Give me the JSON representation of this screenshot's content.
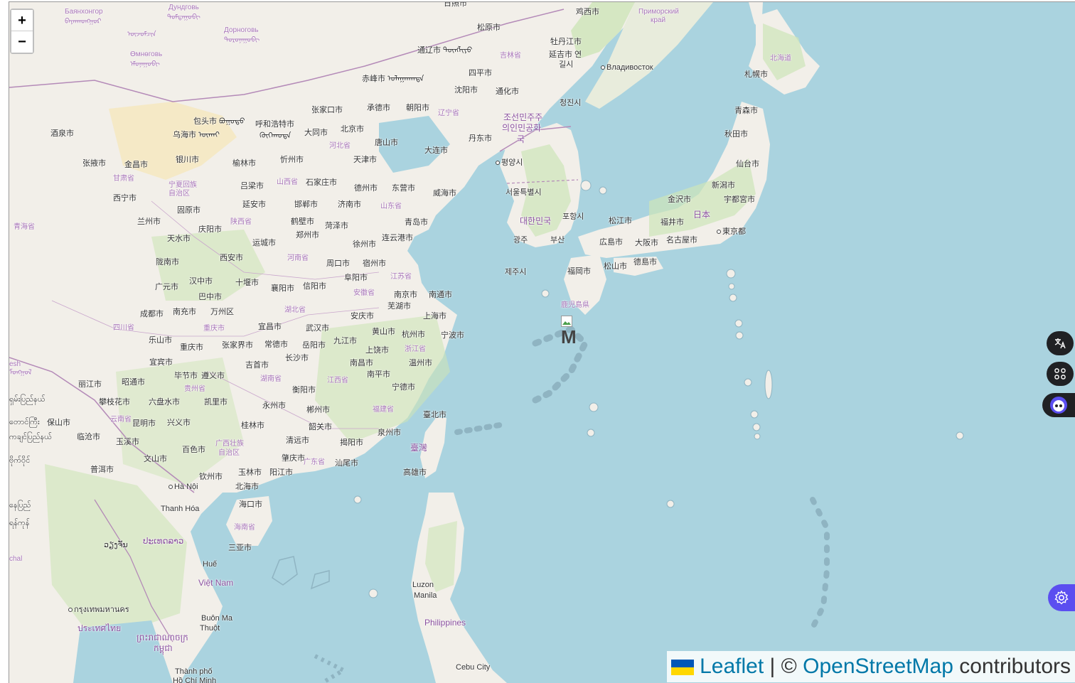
{
  "map": {
    "zoom_in_label": "+",
    "zoom_out_label": "−",
    "attribution": {
      "leaflet": "Leaflet",
      "separator": "|",
      "copyright": "©",
      "osm": "OpenStreetMap",
      "contributors": "contributors"
    },
    "marker_alt_text": "M",
    "places": [
      {
        "text": "Баянхонгор",
        "cls": "prov"
      },
      {
        "text": "ᠪᠠᠶᠠᠨᠬᠣᠩᠭᠣᠷ",
        "cls": "prov"
      },
      {
        "text": "Дундговь",
        "cls": "prov"
      },
      {
        "text": "ᠳᠤᠮᠳᠠᠭᠣᠪᠢ",
        "cls": "prov"
      },
      {
        "text": "Дорноговь",
        "cls": "prov"
      },
      {
        "text": "ᠳᠣᠷᠤᠨᠠᠭᠣᠪᠢ",
        "cls": "prov"
      },
      {
        "text": "Өмнөговь",
        "cls": "prov"
      },
      {
        "text": "ᠡᠮᠦᠨᠡᠭᠣᠪᠢ",
        "cls": "prov"
      },
      {
        "text": "日照市",
        "cls": ""
      },
      {
        "text": "鸡西市",
        "cls": ""
      },
      {
        "text": "Приморский",
        "cls": "prov"
      },
      {
        "text": "край",
        "cls": "prov"
      },
      {
        "text": "松原市",
        "cls": ""
      },
      {
        "text": "牡丹江市",
        "cls": ""
      },
      {
        "text": "通辽市 ᠲᠦᠩᠯᠢᠶᠣ",
        "cls": ""
      },
      {
        "text": "吉林省",
        "cls": "prov"
      },
      {
        "text": "延吉市 연",
        "cls": ""
      },
      {
        "text": "길시",
        "cls": ""
      },
      {
        "text": "Владивосток",
        "cls": "dot"
      },
      {
        "text": "四平市",
        "cls": ""
      },
      {
        "text": "赤峰市 ᠤᠯᠠᠭᠠᠨᠬᠠᠳᠠ",
        "cls": ""
      },
      {
        "text": "北海道",
        "cls": "prov"
      },
      {
        "text": "札幌市",
        "cls": ""
      },
      {
        "text": "沈阳市",
        "cls": ""
      },
      {
        "text": "通化市",
        "cls": ""
      },
      {
        "text": "청진시",
        "cls": ""
      },
      {
        "text": "张家口市",
        "cls": ""
      },
      {
        "text": "承德市",
        "cls": ""
      },
      {
        "text": "朝阳市",
        "cls": ""
      },
      {
        "text": "辽宁省",
        "cls": "prov"
      },
      {
        "text": "조선민주주",
        "cls": "country"
      },
      {
        "text": "의인민공화",
        "cls": "country"
      },
      {
        "text": "국",
        "cls": "country"
      },
      {
        "text": "青森市",
        "cls": ""
      },
      {
        "text": "包头市 ᠪᠤᠭᠤᠲᠣ",
        "cls": ""
      },
      {
        "text": "呼和浩特市",
        "cls": ""
      },
      {
        "text": "ᠬᠥᠬᠡᠬᠣᠲᠠ",
        "cls": ""
      },
      {
        "text": "大同市",
        "cls": ""
      },
      {
        "text": "北京市",
        "cls": ""
      },
      {
        "text": "酒泉市",
        "cls": ""
      },
      {
        "text": "乌海市 ᠦᠬᠠᠢ",
        "cls": ""
      },
      {
        "text": "秋田市",
        "cls": ""
      },
      {
        "text": "丹东市",
        "cls": ""
      },
      {
        "text": "唐山市",
        "cls": ""
      },
      {
        "text": "河北省",
        "cls": "prov"
      },
      {
        "text": "大连市",
        "cls": ""
      },
      {
        "text": "张掖市",
        "cls": ""
      },
      {
        "text": "金昌市",
        "cls": ""
      },
      {
        "text": "银川市",
        "cls": ""
      },
      {
        "text": "榆林市",
        "cls": ""
      },
      {
        "text": "忻州市",
        "cls": ""
      },
      {
        "text": "天津市",
        "cls": ""
      },
      {
        "text": "평양시",
        "cls": "dot"
      },
      {
        "text": "仙台市",
        "cls": ""
      },
      {
        "text": "甘肃省",
        "cls": "prov"
      },
      {
        "text": "宁夏回族",
        "cls": "prov"
      },
      {
        "text": "自治区",
        "cls": "prov"
      },
      {
        "text": "山西省",
        "cls": "prov"
      },
      {
        "text": "石家庄市",
        "cls": ""
      },
      {
        "text": "德州市",
        "cls": ""
      },
      {
        "text": "东营市",
        "cls": ""
      },
      {
        "text": "威海市",
        "cls": ""
      },
      {
        "text": "吕梁市",
        "cls": ""
      },
      {
        "text": "서울특별시",
        "cls": ""
      },
      {
        "text": "新潟市",
        "cls": ""
      },
      {
        "text": "西宁市",
        "cls": ""
      },
      {
        "text": "延安市",
        "cls": ""
      },
      {
        "text": "邯郸市",
        "cls": ""
      },
      {
        "text": "济南市",
        "cls": ""
      },
      {
        "text": "山东省",
        "cls": "prov"
      },
      {
        "text": "金沢市",
        "cls": ""
      },
      {
        "text": "宇都宮市",
        "cls": ""
      },
      {
        "text": "固原市",
        "cls": ""
      },
      {
        "text": "日本",
        "cls": "country"
      },
      {
        "text": "포항시",
        "cls": ""
      },
      {
        "text": "青海省",
        "cls": "prov"
      },
      {
        "text": "兰州市",
        "cls": ""
      },
      {
        "text": "陕西省",
        "cls": "prov"
      },
      {
        "text": "鹤壁市",
        "cls": ""
      },
      {
        "text": "菏泽市",
        "cls": ""
      },
      {
        "text": "青岛市",
        "cls": ""
      },
      {
        "text": "대한민국",
        "cls": "country"
      },
      {
        "text": "松江市",
        "cls": ""
      },
      {
        "text": "福井市",
        "cls": ""
      },
      {
        "text": "庆阳市",
        "cls": ""
      },
      {
        "text": "郑州市",
        "cls": ""
      },
      {
        "text": "東京都",
        "cls": "dot"
      },
      {
        "text": "天水市",
        "cls": ""
      },
      {
        "text": "运城市",
        "cls": ""
      },
      {
        "text": "连云港市",
        "cls": ""
      },
      {
        "text": "광주",
        "cls": ""
      },
      {
        "text": "부산",
        "cls": ""
      },
      {
        "text": "名古屋市",
        "cls": ""
      },
      {
        "text": "徐州市",
        "cls": ""
      },
      {
        "text": "広島市",
        "cls": ""
      },
      {
        "text": "大阪市",
        "cls": ""
      },
      {
        "text": "西安市",
        "cls": ""
      },
      {
        "text": "河南省",
        "cls": "prov"
      },
      {
        "text": "陇南市",
        "cls": ""
      },
      {
        "text": "周口市",
        "cls": ""
      },
      {
        "text": "宿州市",
        "cls": ""
      },
      {
        "text": "德島市",
        "cls": ""
      },
      {
        "text": "松山市",
        "cls": ""
      },
      {
        "text": "제주시",
        "cls": ""
      },
      {
        "text": "福岡市",
        "cls": ""
      },
      {
        "text": "江苏省",
        "cls": "prov"
      },
      {
        "text": "十堰市",
        "cls": ""
      },
      {
        "text": "阜阳市",
        "cls": ""
      },
      {
        "text": "汉中市",
        "cls": ""
      },
      {
        "text": "广元市",
        "cls": ""
      },
      {
        "text": "襄阳市",
        "cls": ""
      },
      {
        "text": "信阳市",
        "cls": ""
      },
      {
        "text": "巴中市",
        "cls": ""
      },
      {
        "text": "安徽省",
        "cls": "prov"
      },
      {
        "text": "南京市",
        "cls": ""
      },
      {
        "text": "南通市",
        "cls": ""
      },
      {
        "text": "芜湖市",
        "cls": ""
      },
      {
        "text": "鹿児島県",
        "cls": "prov"
      },
      {
        "text": "湖北省",
        "cls": "prov"
      },
      {
        "text": "成都市",
        "cls": ""
      },
      {
        "text": "南充市",
        "cls": ""
      },
      {
        "text": "万州区",
        "cls": ""
      },
      {
        "text": "安庆市",
        "cls": ""
      },
      {
        "text": "上海市",
        "cls": ""
      },
      {
        "text": "宜昌市",
        "cls": ""
      },
      {
        "text": "武汉市",
        "cls": ""
      },
      {
        "text": "四川省",
        "cls": "prov"
      },
      {
        "text": "重庆市",
        "cls": "prov"
      },
      {
        "text": "黄山市",
        "cls": ""
      },
      {
        "text": "杭州市",
        "cls": ""
      },
      {
        "text": "宁波市",
        "cls": ""
      },
      {
        "text": "乐山市",
        "cls": ""
      },
      {
        "text": "常德市",
        "cls": ""
      },
      {
        "text": "岳阳市",
        "cls": ""
      },
      {
        "text": "九江市",
        "cls": ""
      },
      {
        "text": "重庆市",
        "cls": ""
      },
      {
        "text": "张家界市",
        "cls": ""
      },
      {
        "text": "浙江省",
        "cls": "prov"
      },
      {
        "text": "宜宾市",
        "cls": ""
      },
      {
        "text": "长沙市",
        "cls": ""
      },
      {
        "text": "上饶市",
        "cls": ""
      },
      {
        "text": "吉首市",
        "cls": ""
      },
      {
        "text": "南昌市",
        "cls": ""
      },
      {
        "text": "温州市",
        "cls": ""
      },
      {
        "text": "毕节市",
        "cls": ""
      },
      {
        "text": "遵义市",
        "cls": ""
      },
      {
        "text": "湖南省",
        "cls": "prov"
      },
      {
        "text": "江西省",
        "cls": "prov"
      },
      {
        "text": "南平市",
        "cls": ""
      },
      {
        "text": "昭通市",
        "cls": ""
      },
      {
        "text": "丽江市",
        "cls": ""
      },
      {
        "text": "贵州省",
        "cls": "prov"
      },
      {
        "text": "衡阳市",
        "cls": ""
      },
      {
        "text": "宁德市",
        "cls": ""
      },
      {
        "text": "攀枝花市",
        "cls": ""
      },
      {
        "text": "六盘水市",
        "cls": ""
      },
      {
        "text": "凯里市",
        "cls": ""
      },
      {
        "text": "永州市",
        "cls": ""
      },
      {
        "text": "郴州市",
        "cls": ""
      },
      {
        "text": "福建省",
        "cls": "prov"
      },
      {
        "text": "云南省",
        "cls": "prov"
      },
      {
        "text": "臺北市",
        "cls": ""
      },
      {
        "text": "保山市",
        "cls": ""
      },
      {
        "text": "昆明市",
        "cls": ""
      },
      {
        "text": "兴义市",
        "cls": ""
      },
      {
        "text": "桂林市",
        "cls": ""
      },
      {
        "text": "韶关市",
        "cls": ""
      },
      {
        "text": "泉州市",
        "cls": ""
      },
      {
        "text": "临沧市",
        "cls": ""
      },
      {
        "text": "玉溪市",
        "cls": ""
      },
      {
        "text": "清远市",
        "cls": ""
      },
      {
        "text": "揭阳市",
        "cls": ""
      },
      {
        "text": "臺灣",
        "cls": "country"
      },
      {
        "text": "百色市",
        "cls": ""
      },
      {
        "text": "广西壮族",
        "cls": "prov"
      },
      {
        "text": "自治区",
        "cls": "prov"
      },
      {
        "text": "文山市",
        "cls": ""
      },
      {
        "text": "肇庆市",
        "cls": ""
      },
      {
        "text": "广东省",
        "cls": "prov"
      },
      {
        "text": "汕尾市",
        "cls": ""
      },
      {
        "text": "普洱市",
        "cls": ""
      },
      {
        "text": "玉林市",
        "cls": ""
      },
      {
        "text": "阳江市",
        "cls": ""
      },
      {
        "text": "高雄市",
        "cls": ""
      },
      {
        "text": "钦州市",
        "cls": ""
      },
      {
        "text": "Hà Nội",
        "cls": "dot"
      },
      {
        "text": "北海市",
        "cls": ""
      },
      {
        "text": "Thanh Hóa",
        "cls": ""
      },
      {
        "text": "海口市",
        "cls": ""
      },
      {
        "text": "海南省",
        "cls": "prov"
      },
      {
        "text": "三亚市",
        "cls": ""
      },
      {
        "text": "ປະເທດລາວ",
        "cls": "country"
      },
      {
        "text": "ວຽງຈັນ",
        "cls": ""
      },
      {
        "text": "Huế",
        "cls": ""
      },
      {
        "text": "Việt Nam",
        "cls": "country"
      },
      {
        "text": "Luzon",
        "cls": ""
      },
      {
        "text": "Manila",
        "cls": ""
      },
      {
        "text": "Philippines",
        "cls": "country"
      },
      {
        "text": "Buôn Ma",
        "cls": ""
      },
      {
        "text": "Thuột",
        "cls": ""
      },
      {
        "text": "กรุงเทพมหานคร",
        "cls": "dot"
      },
      {
        "text": "ประเทศไทย",
        "cls": "country"
      },
      {
        "text": "ព្រះរាជាណាចក្រ",
        "cls": "country"
      },
      {
        "text": "កម្ពុជា",
        "cls": "country"
      },
      {
        "text": "Thành phố",
        "cls": ""
      },
      {
        "text": "Hồ Chí Minh",
        "cls": ""
      },
      {
        "text": "Cebu City",
        "cls": ""
      },
      {
        "text": "ကချင်ပြည်နယ်",
        "cls": ""
      },
      {
        "text": "ဗိုက်ဝိုင်",
        "cls": ""
      },
      {
        "text": "ရှမ်းပြည်နယ်",
        "cls": ""
      },
      {
        "text": "တောင်ကြီး",
        "cls": ""
      },
      {
        "text": "နေပြည်",
        "cls": ""
      },
      {
        "text": "ရန်ကုန်",
        "cls": ""
      },
      {
        "text": "chal",
        "cls": "prov"
      },
      {
        "text": "esh",
        "cls": "prov"
      },
      {
        "text": "ᠮᠣᠩᠭᠣᠯ",
        "cls": "prov"
      },
      {
        "text": "ᠦᠵᠦᠮᠴᠢᠨ",
        "cls": "prov"
      }
    ]
  },
  "side_buttons": [
    {
      "icon": "translate-icon"
    },
    {
      "icon": "apps-icon"
    },
    {
      "icon": "bot-face-icon"
    },
    {
      "icon": "settings-gear-icon"
    }
  ],
  "colors": {
    "water": "#aad3df",
    "land": "#f2efe9",
    "forest": "#cde5b8",
    "desert": "#f5e9c6",
    "link": "#0078a8"
  }
}
